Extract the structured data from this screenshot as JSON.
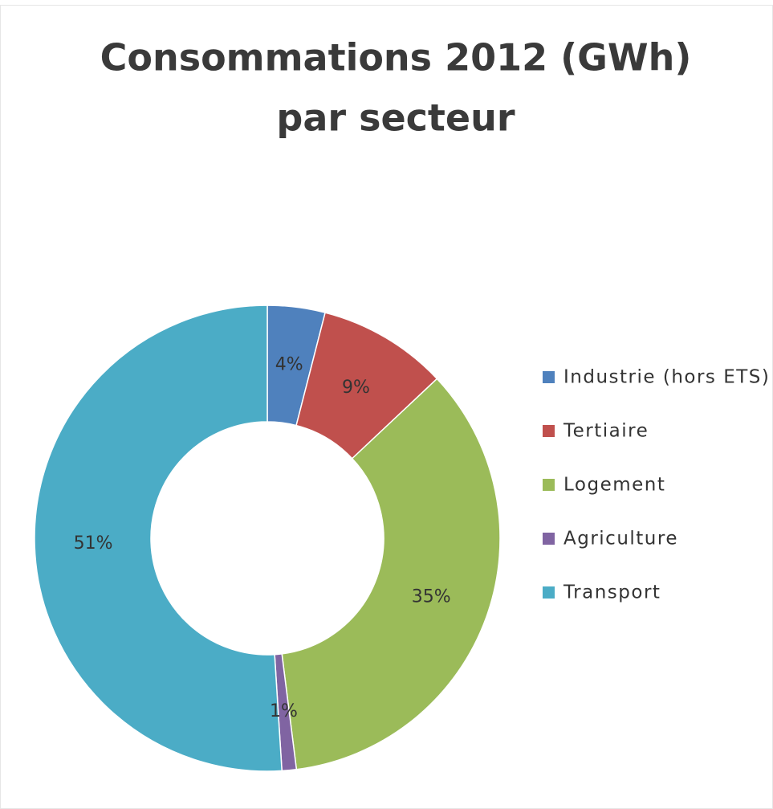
{
  "chart_data": {
    "type": "donut",
    "title": [
      "Consommations 2012 (GWh)",
      "par secteur"
    ],
    "categories": [
      "Industrie (hors ETS)",
      "Tertiaire",
      "Logement",
      "Agriculture",
      "Transport"
    ],
    "values": [
      4,
      9,
      35,
      1,
      51
    ],
    "value_labels": [
      "4%",
      "9%",
      "35%",
      "1%",
      "51%"
    ],
    "colors": [
      "#4f81bd",
      "#c0504d",
      "#9bbb59",
      "#8064a2",
      "#4bacc6"
    ],
    "legend": "right"
  }
}
